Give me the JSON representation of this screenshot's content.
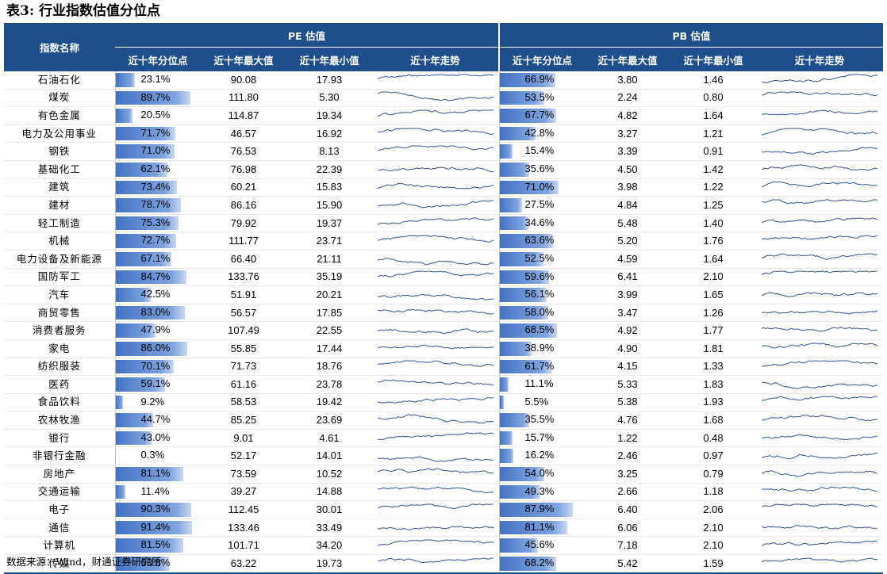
{
  "title": "表3: 行业指数估值分位点",
  "header": {
    "index_name": "指数名称",
    "pe_group": "PE 估值",
    "pb_group": "PB 估值",
    "cols": [
      "近十年分位点",
      "近十年最大值",
      "近十年最小值",
      "近十年走势"
    ]
  },
  "rows": [
    {
      "name": "石油石化",
      "pe_pct": 23.1,
      "pe_pct_text": "23.1%",
      "pe_max": "90.08",
      "pe_min": "17.93",
      "pb_pct": 66.9,
      "pb_pct_text": "66.9%",
      "pb_max": "3.80",
      "pb_min": "1.46"
    },
    {
      "name": "煤炭",
      "pe_pct": 89.7,
      "pe_pct_text": "89.7%",
      "pe_max": "111.80",
      "pe_min": "5.30",
      "pb_pct": 53.5,
      "pb_pct_text": "53.5%",
      "pb_max": "2.24",
      "pb_min": "0.80"
    },
    {
      "name": "有色金属",
      "pe_pct": 20.5,
      "pe_pct_text": "20.5%",
      "pe_max": "114.87",
      "pe_min": "19.34",
      "pb_pct": 67.7,
      "pb_pct_text": "67.7%",
      "pb_max": "4.82",
      "pb_min": "1.64"
    },
    {
      "name": "电力及公用事业",
      "pe_pct": 71.7,
      "pe_pct_text": "71.7%",
      "pe_max": "46.57",
      "pe_min": "16.92",
      "pb_pct": 42.8,
      "pb_pct_text": "42.8%",
      "pb_max": "3.27",
      "pb_min": "1.21"
    },
    {
      "name": "钢铁",
      "pe_pct": 71.0,
      "pe_pct_text": "71.0%",
      "pe_max": "76.53",
      "pe_min": "8.13",
      "pb_pct": 15.4,
      "pb_pct_text": "15.4%",
      "pb_max": "3.39",
      "pb_min": "0.91"
    },
    {
      "name": "基础化工",
      "pe_pct": 62.1,
      "pe_pct_text": "62.1%",
      "pe_max": "76.98",
      "pe_min": "22.39",
      "pb_pct": 35.6,
      "pb_pct_text": "35.6%",
      "pb_max": "4.50",
      "pb_min": "1.42"
    },
    {
      "name": "建筑",
      "pe_pct": 73.4,
      "pe_pct_text": "73.4%",
      "pe_max": "60.21",
      "pe_min": "15.83",
      "pb_pct": 71.0,
      "pb_pct_text": "71.0%",
      "pb_max": "3.98",
      "pb_min": "1.22"
    },
    {
      "name": "建材",
      "pe_pct": 78.7,
      "pe_pct_text": "78.7%",
      "pe_max": "86.16",
      "pe_min": "15.90",
      "pb_pct": 27.5,
      "pb_pct_text": "27.5%",
      "pb_max": "4.84",
      "pb_min": "1.25"
    },
    {
      "name": "轻工制造",
      "pe_pct": 75.3,
      "pe_pct_text": "75.3%",
      "pe_max": "79.92",
      "pe_min": "19.37",
      "pb_pct": 34.6,
      "pb_pct_text": "34.6%",
      "pb_max": "5.48",
      "pb_min": "1.40"
    },
    {
      "name": "机械",
      "pe_pct": 72.7,
      "pe_pct_text": "72.7%",
      "pe_max": "111.77",
      "pe_min": "23.71",
      "pb_pct": 63.6,
      "pb_pct_text": "63.6%",
      "pb_max": "5.20",
      "pb_min": "1.76"
    },
    {
      "name": "电力设备及新能源",
      "pe_pct": 67.1,
      "pe_pct_text": "67.1%",
      "pe_max": "66.40",
      "pe_min": "21.11",
      "pb_pct": 52.5,
      "pb_pct_text": "52.5%",
      "pb_max": "4.59",
      "pb_min": "1.64"
    },
    {
      "name": "国防军工",
      "pe_pct": 84.7,
      "pe_pct_text": "84.7%",
      "pe_max": "133.76",
      "pe_min": "35.19",
      "pb_pct": 59.6,
      "pb_pct_text": "59.6%",
      "pb_max": "6.41",
      "pb_min": "2.10"
    },
    {
      "name": "汽车",
      "pe_pct": 42.5,
      "pe_pct_text": "42.5%",
      "pe_max": "51.91",
      "pe_min": "20.21",
      "pb_pct": 56.1,
      "pb_pct_text": "56.1%",
      "pb_max": "3.99",
      "pb_min": "1.65"
    },
    {
      "name": "商贸零售",
      "pe_pct": 83.0,
      "pe_pct_text": "83.0%",
      "pe_max": "56.57",
      "pe_min": "17.85",
      "pb_pct": 58.0,
      "pb_pct_text": "58.0%",
      "pb_max": "3.47",
      "pb_min": "1.26"
    },
    {
      "name": "消费者服务",
      "pe_pct": 47.9,
      "pe_pct_text": "47.9%",
      "pe_max": "107.49",
      "pe_min": "22.55",
      "pb_pct": 68.5,
      "pb_pct_text": "68.5%",
      "pb_max": "4.92",
      "pb_min": "1.77"
    },
    {
      "name": "家电",
      "pe_pct": 86.0,
      "pe_pct_text": "86.0%",
      "pe_max": "55.85",
      "pe_min": "17.44",
      "pb_pct": 38.9,
      "pb_pct_text": "38.9%",
      "pb_max": "4.90",
      "pb_min": "1.81"
    },
    {
      "name": "纺织服装",
      "pe_pct": 70.1,
      "pe_pct_text": "70.1%",
      "pe_max": "71.73",
      "pe_min": "18.76",
      "pb_pct": 61.7,
      "pb_pct_text": "61.7%",
      "pb_max": "4.15",
      "pb_min": "1.33"
    },
    {
      "name": "医药",
      "pe_pct": 59.1,
      "pe_pct_text": "59.1%",
      "pe_max": "61.16",
      "pe_min": "23.78",
      "pb_pct": 11.1,
      "pb_pct_text": "11.1%",
      "pb_max": "5.33",
      "pb_min": "1.83"
    },
    {
      "name": "食品饮料",
      "pe_pct": 9.2,
      "pe_pct_text": "9.2%",
      "pe_max": "58.53",
      "pe_min": "19.42",
      "pb_pct": 5.5,
      "pb_pct_text": "5.5%",
      "pb_max": "5.38",
      "pb_min": "1.93"
    },
    {
      "name": "农林牧渔",
      "pe_pct": 44.7,
      "pe_pct_text": "44.7%",
      "pe_max": "85.25",
      "pe_min": "23.69",
      "pb_pct": 35.5,
      "pb_pct_text": "35.5%",
      "pb_max": "4.76",
      "pb_min": "1.68"
    },
    {
      "name": "银行",
      "pe_pct": 43.0,
      "pe_pct_text": "43.0%",
      "pe_max": "9.01",
      "pe_min": "4.61",
      "pb_pct": 15.7,
      "pb_pct_text": "15.7%",
      "pb_max": "1.22",
      "pb_min": "0.48"
    },
    {
      "name": "非银行金融",
      "pe_pct": 0.3,
      "pe_pct_text": "0.3%",
      "pe_max": "52.17",
      "pe_min": "14.01",
      "pb_pct": 16.2,
      "pb_pct_text": "16.2%",
      "pb_max": "2.46",
      "pb_min": "0.97"
    },
    {
      "name": "房地产",
      "pe_pct": 81.1,
      "pe_pct_text": "81.1%",
      "pe_max": "73.59",
      "pe_min": "10.52",
      "pb_pct": 54.0,
      "pb_pct_text": "54.0%",
      "pb_max": "3.25",
      "pb_min": "0.79"
    },
    {
      "name": "交通运输",
      "pe_pct": 11.4,
      "pe_pct_text": "11.4%",
      "pe_max": "39.27",
      "pe_min": "14.88",
      "pb_pct": 49.3,
      "pb_pct_text": "49.3%",
      "pb_max": "2.66",
      "pb_min": "1.18"
    },
    {
      "name": "电子",
      "pe_pct": 90.3,
      "pe_pct_text": "90.3%",
      "pe_max": "112.45",
      "pe_min": "30.01",
      "pb_pct": 87.9,
      "pb_pct_text": "87.9%",
      "pb_max": "6.40",
      "pb_min": "2.06"
    },
    {
      "name": "通信",
      "pe_pct": 91.4,
      "pe_pct_text": "91.4%",
      "pe_max": "133.46",
      "pe_min": "33.49",
      "pb_pct": 81.1,
      "pb_pct_text": "81.1%",
      "pb_max": "6.06",
      "pb_min": "2.10"
    },
    {
      "name": "计算机",
      "pe_pct": 81.5,
      "pe_pct_text": "81.5%",
      "pe_max": "101.71",
      "pe_min": "34.20",
      "pb_pct": 45.6,
      "pb_pct_text": "45.6%",
      "pb_max": "7.18",
      "pb_min": "2.10"
    },
    {
      "name": "传媒",
      "pe_pct": 63.8,
      "pe_pct_text": "63.8%",
      "pe_max": "63.22",
      "pe_min": "19.73",
      "pb_pct": 68.2,
      "pb_pct_text": "68.2%",
      "pb_max": "5.42",
      "pb_min": "1.59"
    }
  ],
  "colors": {
    "header_bg": "#1f4e8c",
    "bar": "#4472c4",
    "spark": "#2f5597"
  },
  "source": "数据来源：Wind，财通证券研究所"
}
